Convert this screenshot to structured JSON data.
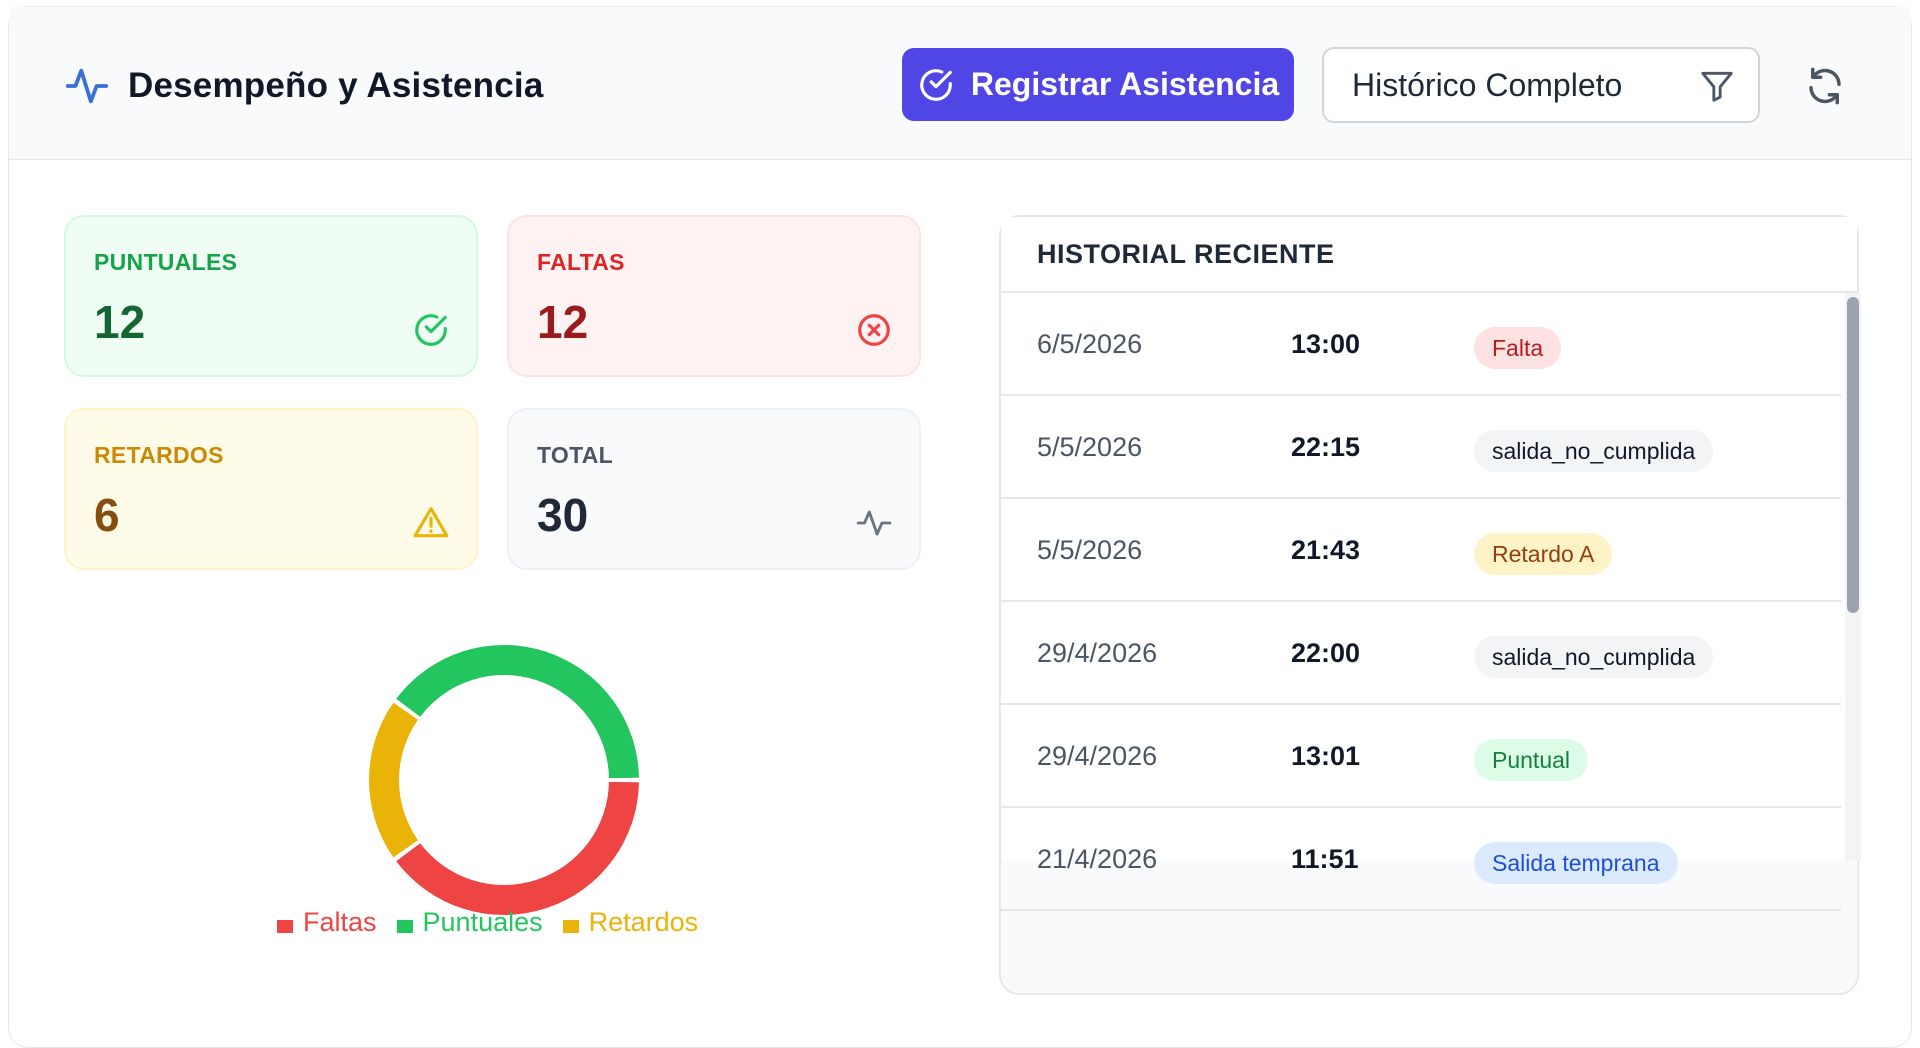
{
  "header": {
    "title": "Desempeño y Asistencia",
    "register_label": "Registrar Asistencia",
    "filter_value": "Histórico Completo"
  },
  "stats": {
    "puntuales": {
      "label": "PUNTUALES",
      "value": "12"
    },
    "faltas": {
      "label": "FALTAS",
      "value": "12"
    },
    "retardos": {
      "label": "RETARDOS",
      "value": "6"
    },
    "total": {
      "label": "TOTAL",
      "value": "30"
    }
  },
  "chart_data": {
    "type": "pie",
    "variant": "donut",
    "categories": [
      "Faltas",
      "Puntuales",
      "Retardos"
    ],
    "values": [
      12,
      12,
      6
    ],
    "colors": [
      "#ef4444",
      "#22c55e",
      "#eab308"
    ],
    "legend_position": "bottom"
  },
  "history": {
    "title": "HISTORIAL RECIENTE",
    "rows": [
      {
        "date": "6/5/2026",
        "time": "13:00",
        "status": "Falta",
        "tone": "red"
      },
      {
        "date": "5/5/2026",
        "time": "22:15",
        "status": "salida_no_cumplida",
        "tone": "gray"
      },
      {
        "date": "5/5/2026",
        "time": "21:43",
        "status": "Retardo A",
        "tone": "yellow"
      },
      {
        "date": "29/4/2026",
        "time": "22:00",
        "status": "salida_no_cumplida",
        "tone": "gray"
      },
      {
        "date": "29/4/2026",
        "time": "13:01",
        "status": "Puntual",
        "tone": "green"
      },
      {
        "date": "21/4/2026",
        "time": "11:51",
        "status": "Salida temprana",
        "tone": "blue"
      }
    ]
  },
  "icons": {
    "title": "activity-icon",
    "register": "check-circle-icon",
    "filter": "funnel-icon",
    "refresh": "refresh-icon",
    "puntuales": "check-circle-icon",
    "faltas": "x-circle-icon",
    "retardos": "warning-triangle-icon",
    "total": "activity-icon"
  },
  "colors": {
    "accent": "#4f46e5",
    "puntuales": "#22c55e",
    "faltas": "#ef4444",
    "retardos": "#eab308"
  }
}
